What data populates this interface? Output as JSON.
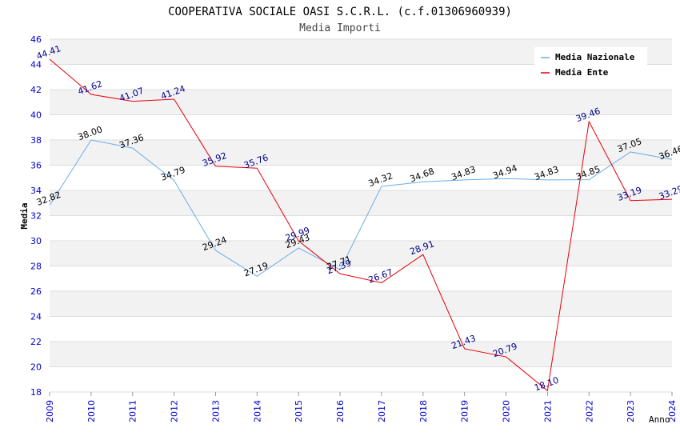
{
  "chart_data": {
    "type": "line",
    "title": "COOPERATIVA SOCIALE OASI S.C.R.L. (c.f.01306960939)",
    "subtitle": "Media Importi",
    "xlabel": "Anno",
    "ylabel": "Media",
    "ylim": [
      18,
      46
    ],
    "yticks": [
      "18",
      "20",
      "22",
      "24",
      "26",
      "28",
      "30",
      "32",
      "34",
      "36",
      "38",
      "40",
      "42",
      "44",
      "46"
    ],
    "categories": [
      "2009",
      "2010",
      "2011",
      "2012",
      "2013",
      "2014",
      "2015",
      "2016",
      "2017",
      "2018",
      "2019",
      "2020",
      "2021",
      "2022",
      "2023",
      "2024"
    ],
    "legend_position": "top-right",
    "series": [
      {
        "name": "Media Nazionale",
        "color": "#6aaee8",
        "label_color": "#000000",
        "values": [
          32.82,
          38.0,
          37.36,
          34.79,
          29.24,
          27.19,
          29.43,
          27.71,
          34.32,
          34.68,
          34.83,
          34.94,
          34.83,
          34.85,
          37.05,
          36.46
        ],
        "labels": [
          "32.82",
          "38.00",
          "37.36",
          "34.79",
          "29.24",
          "27.19",
          "29.43",
          "27.71",
          "34.32",
          "34.68",
          "34.83",
          "34.94",
          "34.83",
          "34.85",
          "37.05",
          "36.46"
        ]
      },
      {
        "name": "Media Ente",
        "color": "#e8000b",
        "label_color": "#00008b",
        "values": [
          44.41,
          41.62,
          41.07,
          41.24,
          35.92,
          35.76,
          29.99,
          27.39,
          26.67,
          28.91,
          21.43,
          20.79,
          18.1,
          39.46,
          33.19,
          33.29
        ],
        "labels": [
          "44.41",
          "41.62",
          "41.07",
          "41.24",
          "35.92",
          "35.76",
          "29.99",
          "27.39",
          "26.67",
          "28.91",
          "21.43",
          "20.79",
          "18.10",
          "39.46",
          "33.19",
          "33.29"
        ]
      }
    ]
  }
}
